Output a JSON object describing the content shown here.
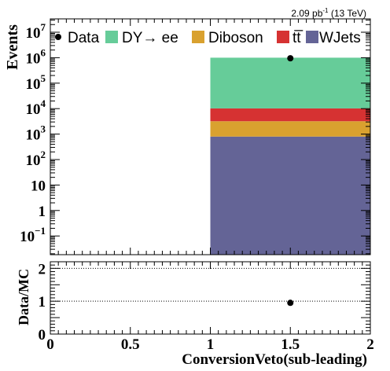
{
  "chart_data": [
    {
      "type": "bar",
      "panel": "main",
      "stacked": true,
      "lumi_label": "2.09 pb",
      "lumi_exp": "-1",
      "lumi_energy": "(13 TeV)",
      "ylabel": "Events",
      "yscale": "log",
      "ylim": [
        0.02,
        20000000
      ],
      "xlim": [
        0,
        2
      ],
      "bins": [
        [
          1,
          2
        ]
      ],
      "legend_position": "top",
      "series": [
        {
          "name": "WJets",
          "color": "#646496",
          "values": [
            800
          ]
        },
        {
          "name": "Diboson",
          "color": "#d9a12f",
          "values": [
            2400
          ]
        },
        {
          "name": "tt̅",
          "color": "#d63232",
          "values": [
            7000
          ]
        },
        {
          "name": "DY→ ee",
          "color": "#66cc99",
          "values": [
            990000
          ]
        }
      ],
      "data_points": {
        "name": "Data",
        "x": [
          1.5
        ],
        "y": [
          950000
        ],
        "color": "#000000"
      },
      "y_tick_labels": [
        {
          "base": "10",
          "exp": "7",
          "value": 10000000
        },
        {
          "base": "10",
          "exp": "6",
          "value": 1000000
        },
        {
          "base": "10",
          "exp": "5",
          "value": 100000
        },
        {
          "base": "10",
          "exp": "4",
          "value": 10000
        },
        {
          "base": "10",
          "exp": "3",
          "value": 1000
        },
        {
          "base": "10",
          "exp": "2",
          "value": 100
        },
        {
          "base": "10",
          "exp": "",
          "value": 10
        },
        {
          "base": "1",
          "exp": "",
          "value": 1
        },
        {
          "base": "10",
          "exp": "−1",
          "value": 0.1
        }
      ]
    },
    {
      "type": "scatter",
      "panel": "ratio",
      "ylabel": "Data/MC",
      "xlabel": "ConversionVeto(sub-leading)",
      "xlim": [
        0,
        2
      ],
      "ylim": [
        0,
        2.2
      ],
      "reference_lines": [
        1,
        2
      ],
      "x": [
        1.5
      ],
      "y": [
        0.95
      ],
      "x_ticks": [
        "0",
        "0.5",
        "1",
        "1.5",
        "2"
      ],
      "y_ticks": [
        "0",
        "1",
        "2"
      ]
    }
  ]
}
